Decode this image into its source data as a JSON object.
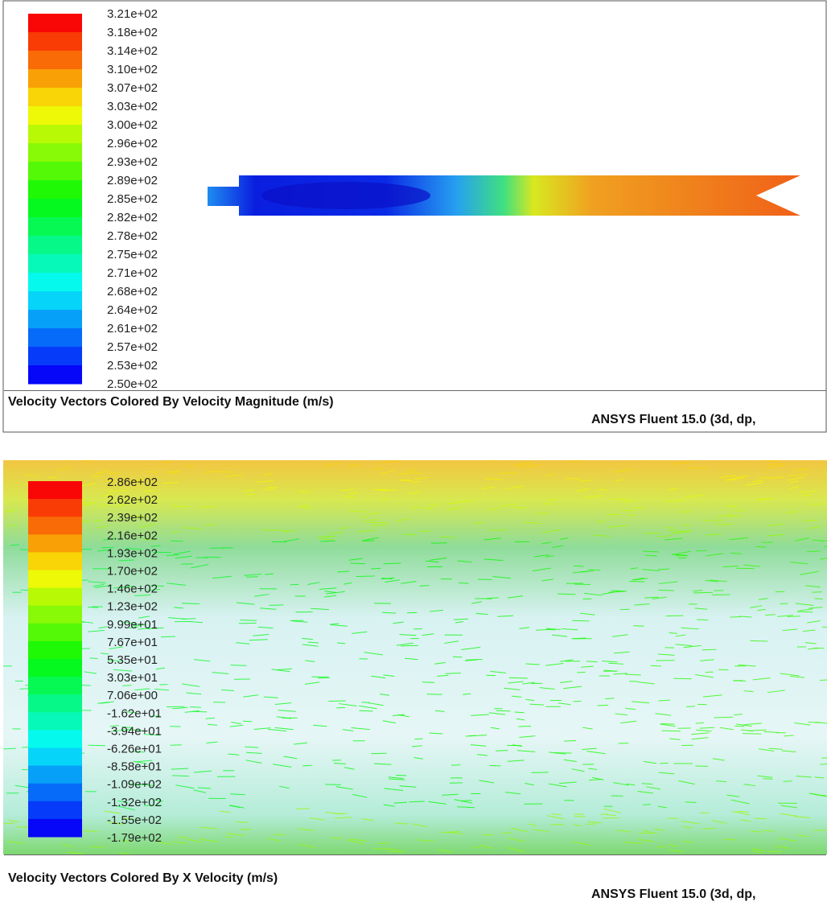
{
  "panels": [
    {
      "legend_labels": [
        "3.21e+02",
        "3.18e+02",
        "3.14e+02",
        "3.10e+02",
        "3.07e+02",
        "3.03e+02",
        "3.00e+02",
        "2.96e+02",
        "2.93e+02",
        "2.89e+02",
        "2.85e+02",
        "2.82e+02",
        "2.78e+02",
        "2.75e+02",
        "2.71e+02",
        "2.68e+02",
        "2.64e+02",
        "2.61e+02",
        "2.57e+02",
        "2.53e+02",
        "2.50e+02"
      ],
      "title": "Velocity Vectors Colored By Velocity Magnitude (m/s)",
      "footer": "ANSYS Fluent 15.0 (3d, dp,"
    },
    {
      "legend_labels": [
        "2.86e+02",
        "2.62e+02",
        "2.39e+02",
        "2.16e+02",
        "1.93e+02",
        "1.70e+02",
        "1.46e+02",
        "1.23e+02",
        "9.99e+01",
        "7.67e+01",
        "5.35e+01",
        "3.03e+01",
        "7.06e+00",
        "-1.62e+01",
        "-3.94e+01",
        "-6.26e+01",
        "-8.58e+01",
        "-1.09e+02",
        "-1.32e+02",
        "-1.55e+02",
        "-1.79e+02"
      ],
      "title": "Velocity Vectors Colored By X Velocity (m/s)",
      "footer": "ANSYS Fluent 15.0 (3d, dp,"
    }
  ]
}
